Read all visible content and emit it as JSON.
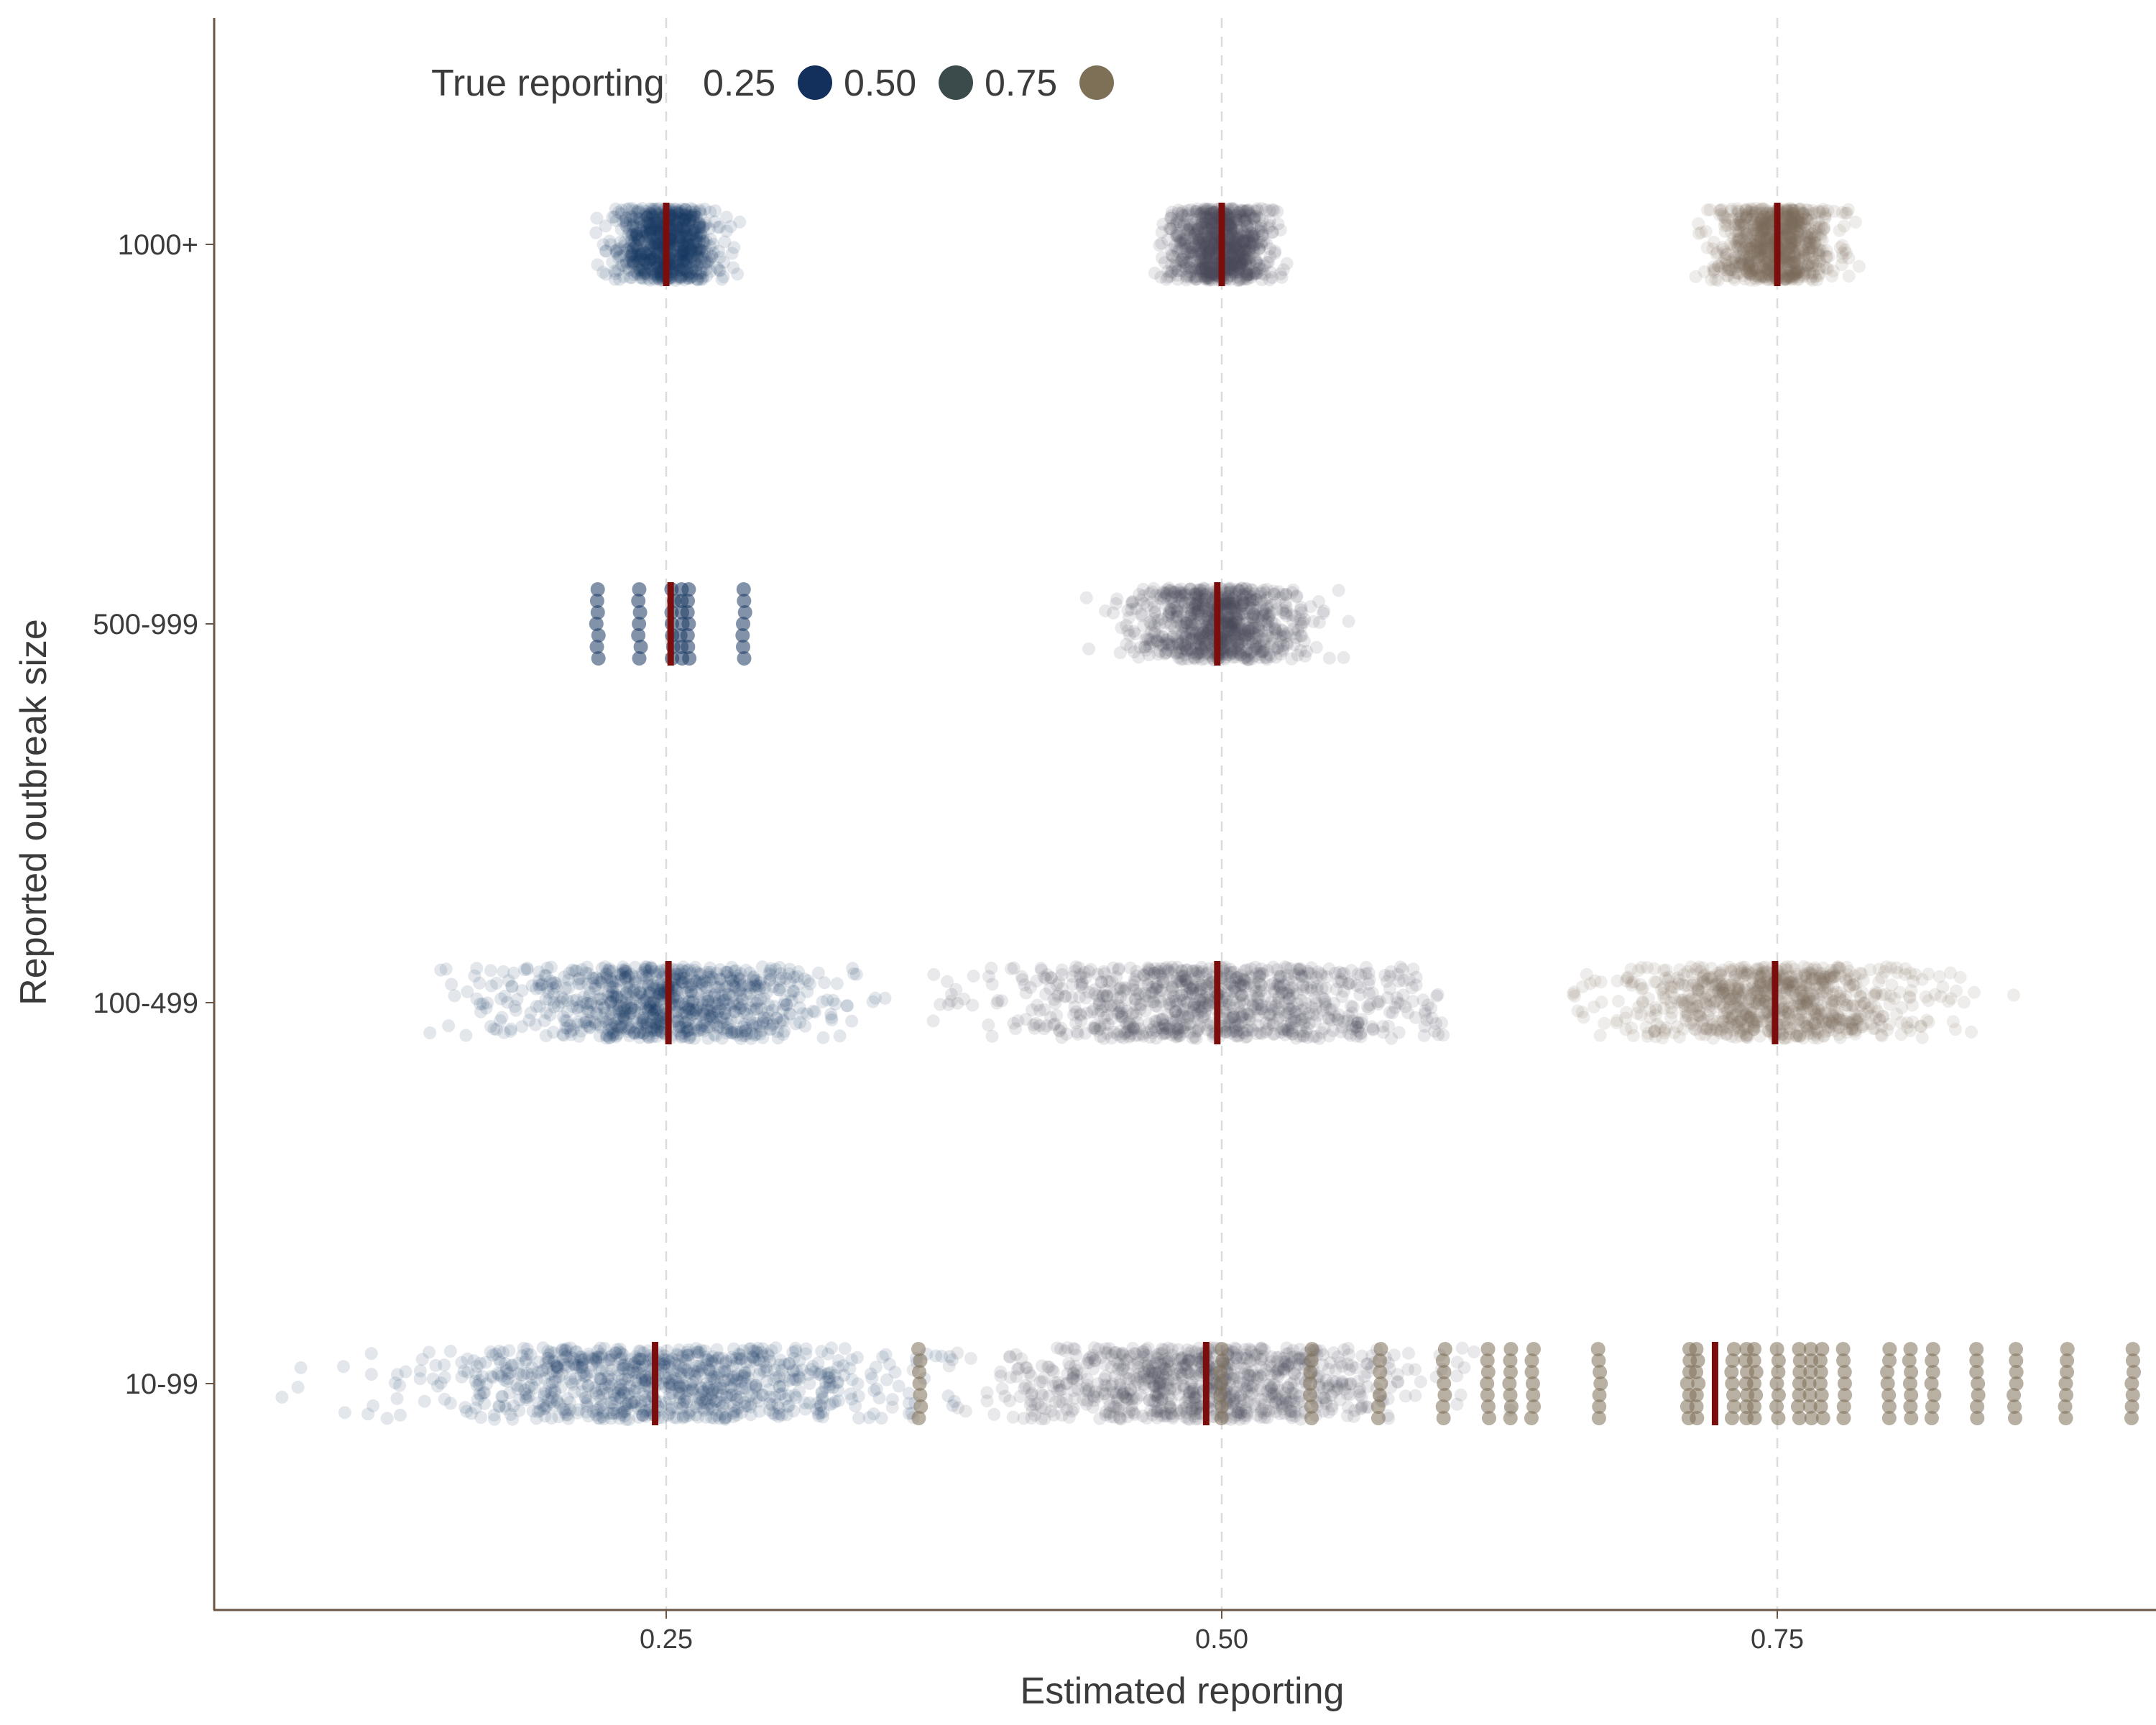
{
  "chart_data": {
    "type": "scatter",
    "title": "",
    "xlabel": "Estimated reporting",
    "ylabel": "Reported outbreak size",
    "xlim": [
      0.043,
      0.913
    ],
    "x_ticks": [
      0.25,
      0.5,
      0.75
    ],
    "x_tick_labels": [
      "0.25",
      "0.50",
      "0.75"
    ],
    "y_categories": [
      "10-99",
      "100-499",
      "500-999",
      "1000+"
    ],
    "reference_lines": [
      0.25,
      0.5,
      0.75
    ],
    "legend": {
      "title": "True reporting",
      "position": "top-left",
      "entries": [
        {
          "label": "0.25",
          "color": "#132f5c"
        },
        {
          "label": "0.50",
          "color": "#3b4a4a"
        },
        {
          "label": "0.75",
          "color": "#7e6f57"
        }
      ]
    },
    "point_colors": {
      "0.25": "#1b3a63",
      "0.50": "#4a4a5a",
      "0.75": "#7e6f57"
    },
    "median_color": "#7b0d0d",
    "series": [
      {
        "name": "0.25",
        "group": "1000+",
        "center": 0.25,
        "core_range": [
          0.228,
          0.272
        ],
        "spread_range": [
          0.208,
          0.305
        ],
        "medians": [
          0.25
        ]
      },
      {
        "name": "0.50",
        "group": "1000+",
        "center": 0.5,
        "core_range": [
          0.478,
          0.522
        ],
        "spread_range": [
          0.458,
          0.535
        ],
        "medians": [
          0.5
        ]
      },
      {
        "name": "0.75",
        "group": "1000+",
        "center": 0.75,
        "core_range": [
          0.726,
          0.775
        ],
        "spread_range": [
          0.706,
          0.795
        ],
        "medians": [
          0.75
        ]
      },
      {
        "name": "0.25",
        "group": "500-999",
        "discrete_values": [
          0.219,
          0.238,
          0.253,
          0.257,
          0.26,
          0.285
        ],
        "medians": [
          0.252
        ]
      },
      {
        "name": "0.50",
        "group": "500-999",
        "center": 0.498,
        "core_range": [
          0.465,
          0.54
        ],
        "spread_range": [
          0.435,
          0.578
        ],
        "medians": [
          0.498
        ]
      },
      {
        "name": "0.25",
        "group": "100-499",
        "center": 0.251,
        "core_range": [
          0.19,
          0.32
        ],
        "spread_range": [
          0.095,
          0.358
        ],
        "medians": [
          0.251
        ]
      },
      {
        "name": "0.50",
        "group": "100-499",
        "center": 0.498,
        "core_range": [
          0.41,
          0.59
        ],
        "spread_range": [
          0.37,
          0.6
        ],
        "medians": [
          0.498
        ]
      },
      {
        "name": "0.75",
        "group": "100-499",
        "center": 0.749,
        "core_range": [
          0.68,
          0.81
        ],
        "spread_range": [
          0.655,
          0.87
        ],
        "medians": [
          0.749
        ]
      },
      {
        "name": "0.25",
        "group": "10-99",
        "center": 0.245,
        "core_range": [
          0.12,
          0.33
        ],
        "spread_range": [
          0.065,
          0.38
        ],
        "medians": [
          0.245
        ]
      },
      {
        "name": "0.50",
        "group": "10-99",
        "center": 0.493,
        "core_range": [
          0.4,
          0.58
        ],
        "spread_range": [
          0.35,
          0.63
        ],
        "medians": [
          0.493
        ]
      },
      {
        "name": "0.75",
        "group": "10-99",
        "discrete_values": [
          0.364,
          0.5,
          0.54,
          0.571,
          0.6,
          0.62,
          0.63,
          0.64,
          0.67,
          0.71,
          0.714,
          0.73,
          0.736,
          0.74,
          0.75,
          0.76,
          0.765,
          0.77,
          0.78,
          0.8,
          0.81,
          0.82,
          0.84,
          0.857,
          0.88,
          0.91
        ],
        "medians": [
          0.722
        ]
      }
    ]
  }
}
